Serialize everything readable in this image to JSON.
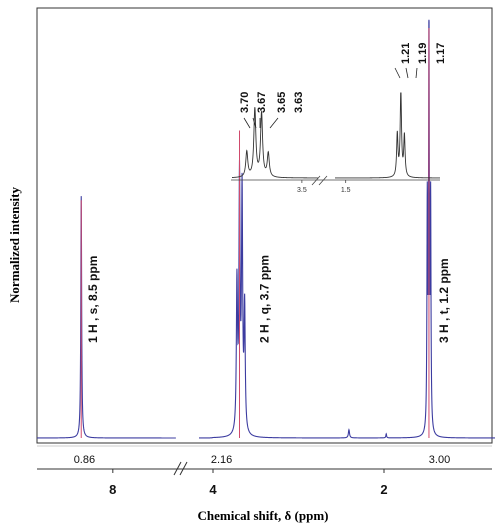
{
  "chart_data": {
    "type": "line",
    "title": "",
    "xlabel": "Chemical shift, δ (ppm)",
    "ylabel": "Normalized intensity",
    "x_axis": {
      "reversed": true,
      "xlim": [
        9.2,
        0.0
      ],
      "break_between": [
        7.0,
        5.6
      ],
      "ticks": [
        8,
        4,
        2
      ]
    },
    "ylim": [
      0,
      1
    ],
    "grid": false,
    "series": [
      {
        "color": "#3c3ca0",
        "peaks": [
          {
            "center": 8.5,
            "height": 0.59
          },
          {
            "center": 3.72,
            "height": 0.36
          },
          {
            "center": 3.69,
            "height": 0.61
          },
          {
            "center": 3.66,
            "height": 0.58
          },
          {
            "center": 3.63,
            "height": 0.3
          },
          {
            "center": 2.41,
            "height": 0.02
          },
          {
            "center": 1.96,
            "height": 0.01
          },
          {
            "center": 1.22,
            "height": 0.55
          },
          {
            "center": 1.19,
            "height": 1.0
          },
          {
            "center": 1.16,
            "height": 0.55
          }
        ]
      },
      {
        "color": "#d04a6c",
        "peaks": []
      }
    ],
    "peak_labels": [
      {
        "text": "1 H , s, 8.5 ppm",
        "x": 8.25
      },
      {
        "text": "2 H , q, 3.7 ppm",
        "x": 3.35
      },
      {
        "text": "3 H , t, 1.2 ppm",
        "x": 0.85
      }
    ],
    "integrals": [
      {
        "text": "0.86",
        "x": 8.45
      },
      {
        "text": "2.16",
        "x": 3.9
      },
      {
        "text": "3.00",
        "x": 1.0
      }
    ],
    "inset": {
      "type": "line",
      "segments": [
        {
          "xlim": [
            3.76,
            3.44
          ],
          "ticks": [
            {
              "x": 3.5,
              "label": "3.5"
            }
          ],
          "peak_labels": [
            "3.70",
            "3.67",
            "3.65",
            "3.63"
          ],
          "peaks": [
            {
              "center": 3.705,
              "height": 0.3
            },
            {
              "center": 3.675,
              "height": 0.8
            },
            {
              "center": 3.65,
              "height": 0.75
            },
            {
              "center": 3.625,
              "height": 0.28
            }
          ]
        },
        {
          "xlim": [
            1.56,
            0.97
          ],
          "ticks": [
            {
              "x": 1.5,
              "label": "1.5"
            }
          ],
          "peak_labels": [
            "1.21",
            "1.19",
            "1.17"
          ],
          "peaks": [
            {
              "center": 1.21,
              "height": 0.5
            },
            {
              "center": 1.19,
              "height": 1.0
            },
            {
              "center": 1.17,
              "height": 0.48
            }
          ]
        }
      ]
    }
  }
}
